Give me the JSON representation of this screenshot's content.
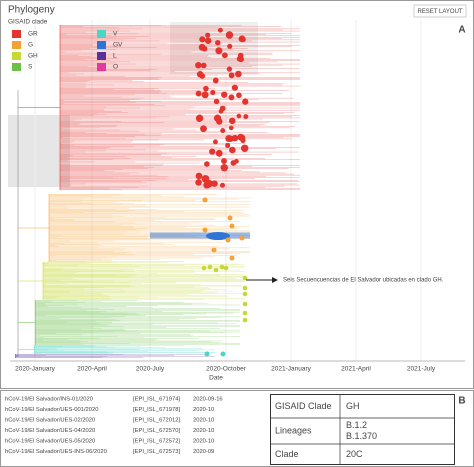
{
  "panel_a": {
    "label": "A",
    "title": "Phylogeny",
    "reset_button": "RESET LAYOUT",
    "legend_title": "GISAID clade",
    "legend": [
      {
        "name": "GR",
        "color": "#e3342f"
      },
      {
        "name": "G",
        "color": "#f4a235"
      },
      {
        "name": "GH",
        "color": "#c5d835"
      },
      {
        "name": "S",
        "color": "#6cc04a"
      },
      {
        "name": "V",
        "color": "#48d6c5"
      },
      {
        "name": "GV",
        "color": "#2f74d6"
      },
      {
        "name": "L",
        "color": "#5b2f9e"
      },
      {
        "name": "O",
        "color": "#e0399f"
      }
    ],
    "annotation": "Seis Secuencuencias de El Salvador ubicadas en clado GH.",
    "x_axis": {
      "ticks": [
        "2020-January",
        "2020-April",
        "2020-July",
        "2020-October",
        "2021-January",
        "2021-April",
        "2021-July"
      ],
      "label": "Date"
    }
  },
  "panel_b": {
    "label": "B",
    "sequences": [
      [
        "hCoV-19/El Salvador/INS-01/2020",
        "[EPI_ISL_671974]",
        "2020-09-16"
      ],
      [
        "hCoV-19/El Salvador/UES-001/2020",
        "[EPI_ISL_671978]",
        "2020-10"
      ],
      [
        "hCoV-19/El Salvador/UES-02/2020",
        "[EPI_ISL_672012]",
        "2020-10"
      ],
      [
        "hCoV-19/El Salvador/UES-04/2020",
        "[EPI_ISL_672570]",
        "2020-10"
      ],
      [
        "hCoV-19/El Salvador/UES-05/2020",
        "[EPI_ISL_672572]",
        "2020-10"
      ],
      [
        "hCoV-19/El Salvador/UES-INS-06/2020",
        "[EPI_ISL_672573]",
        "2020-09"
      ]
    ],
    "table": [
      {
        "label": "GISAID Clade",
        "values": [
          "GH"
        ]
      },
      {
        "label": "Lineages",
        "values": [
          "B.1.2",
          "B.1.370"
        ]
      },
      {
        "label": "Clade",
        "values": [
          "20C"
        ]
      }
    ]
  }
}
